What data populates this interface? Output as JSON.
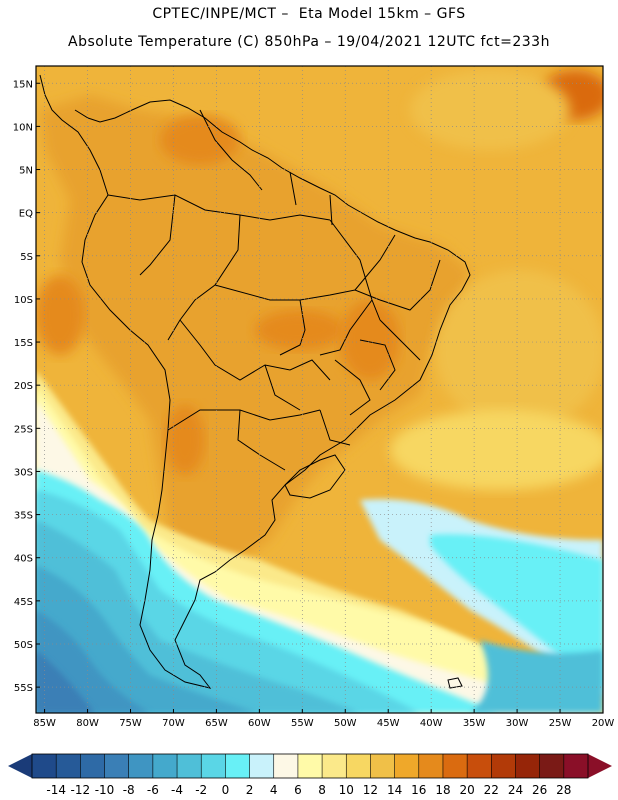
{
  "header": {
    "title_line1": "CPTEC/INPE/MCT –  Eta Model 15km – GFS",
    "title_line2": "Absolute Temperature (C) 850hPa – 19/04/2021 12UTC fct=233h"
  },
  "map": {
    "lat_labels": [
      "15N",
      "10N",
      "5N",
      "EQ",
      "5S",
      "10S",
      "15S",
      "20S",
      "25S",
      "30S",
      "35S",
      "40S",
      "45S",
      "50S",
      "55S"
    ],
    "lon_labels": [
      "85W",
      "80W",
      "75W",
      "70W",
      "65W",
      "60W",
      "55W",
      "50W",
      "45W",
      "40W",
      "35W",
      "30W",
      "25W",
      "20W"
    ],
    "lat_values": [
      15,
      10,
      5,
      0,
      -5,
      -10,
      -15,
      -20,
      -25,
      -30,
      -35,
      -40,
      -45,
      -50,
      -55
    ],
    "lon_values": [
      -85,
      -80,
      -75,
      -70,
      -65,
      -60,
      -55,
      -50,
      -45,
      -40,
      -35,
      -30,
      -25,
      -20
    ],
    "extent": {
      "lon_min": -86,
      "lon_max": -20,
      "lat_min": -58,
      "lat_max": 17
    },
    "grid": "dotted",
    "ocean_color": "#efb43a",
    "land_color": "#e8a22e"
  },
  "colorbar": {
    "labels": [
      "-14",
      "-12",
      "-10",
      "-8",
      "-6",
      "-4",
      "-2",
      "0",
      "2",
      "4",
      "6",
      "8",
      "10",
      "12",
      "14",
      "16",
      "18",
      "20",
      "22",
      "24",
      "26",
      "28"
    ],
    "colors": [
      "#1f4a8a",
      "#265a98",
      "#2e6aa6",
      "#3a7fb6",
      "#3f95c2",
      "#44a9cc",
      "#4fbfd8",
      "#5ad6e6",
      "#68f0f6",
      "#c9f2fb",
      "#fdf8e6",
      "#fffaa8",
      "#fbe98a",
      "#f7d762",
      "#f0c048",
      "#efa82a",
      "#e58a1c",
      "#da6b10",
      "#c84e0c",
      "#b23a08",
      "#962508",
      "#7a1a16",
      "#8a0f28"
    ]
  }
}
